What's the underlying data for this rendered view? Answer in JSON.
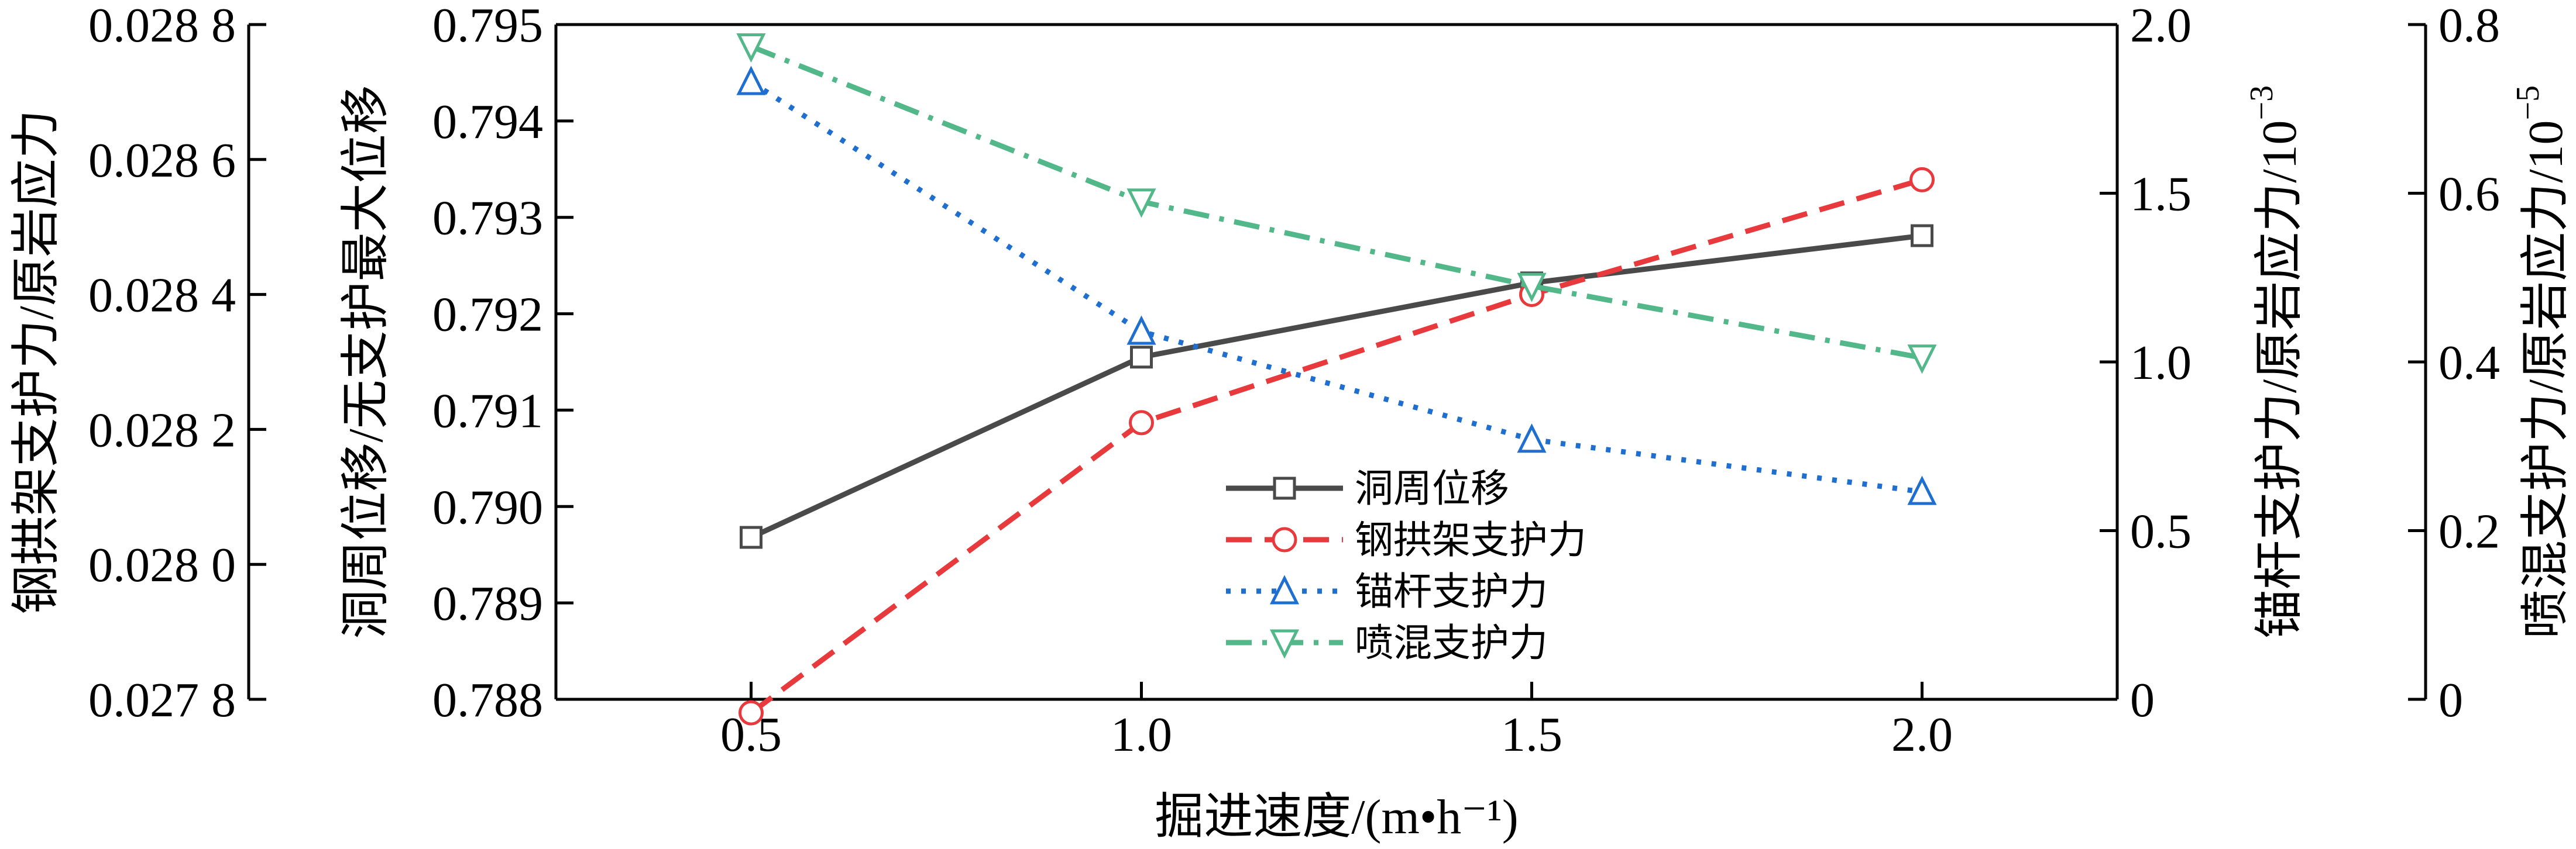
{
  "chart_data": {
    "type": "line",
    "xlabel": "掘进速度/(m•h⁻¹)",
    "x": [
      0.5,
      1.0,
      1.5,
      2.0
    ],
    "xlim": [
      0.25,
      2.25
    ],
    "xticks": [
      0.5,
      1.0,
      1.5,
      2.0
    ],
    "xtick_labels": [
      "0.5",
      "1.0",
      "1.5",
      "2.0"
    ],
    "axes": [
      {
        "id": "left_outer",
        "label": "钢拱架支护力/原岩应力",
        "lim": [
          0.0278,
          0.0288
        ],
        "ticks": [
          0.0278,
          0.028,
          0.0282,
          0.0284,
          0.0286,
          0.0288
        ],
        "tick_labels": [
          "0.027 8",
          "0.028 0",
          "0.028 2",
          "0.028 4",
          "0.028 6",
          "0.028 8"
        ]
      },
      {
        "id": "left_inner",
        "label": "洞周位移/无支护最大位移",
        "lim": [
          0.788,
          0.795
        ],
        "ticks": [
          0.788,
          0.789,
          0.79,
          0.791,
          0.792,
          0.793,
          0.794,
          0.795
        ],
        "tick_labels": [
          "0.788",
          "0.789",
          "0.790",
          "0.791",
          "0.792",
          "0.793",
          "0.794",
          "0.795"
        ]
      },
      {
        "id": "right_inner",
        "label": "锚杆支护力/原岩应力/10",
        "label_exponent": "−3",
        "lim": [
          0,
          2.0
        ],
        "ticks": [
          0,
          0.5,
          1.0,
          1.5,
          2.0
        ],
        "tick_labels": [
          "0",
          "0.5",
          "1.0",
          "1.5",
          "2.0"
        ]
      },
      {
        "id": "right_outer",
        "label": "喷混支护力/原岩应力/10",
        "label_exponent": "−5",
        "lim": [
          0,
          0.8
        ],
        "ticks": [
          0,
          0.2,
          0.4,
          0.6,
          0.8
        ],
        "tick_labels": [
          "0",
          "0.2",
          "0.4",
          "0.6",
          "0.8"
        ]
      }
    ],
    "series": [
      {
        "name": "洞周位移",
        "axis": "left_inner",
        "values": [
          0.78968,
          0.79155,
          0.79232,
          0.79281
        ],
        "color": "#4a4a4a",
        "dash": "solid",
        "marker": "square"
      },
      {
        "name": "钢拱架支护力",
        "axis": "left_outer",
        "values": [
          0.02778,
          0.02821,
          0.0284,
          0.02857
        ],
        "color": "#e8393c",
        "dash": "dashed",
        "marker": "circle"
      },
      {
        "name": "锚杆支护力",
        "axis": "right_inner",
        "values": [
          1.83,
          1.09,
          0.77,
          0.615
        ],
        "color": "#1f6fd1",
        "dash": "dotted",
        "marker": "triangle-up"
      },
      {
        "name": "喷混支护力",
        "axis": "right_outer",
        "values": [
          0.774,
          0.59,
          0.49,
          0.405
        ],
        "color": "#52b789",
        "dash": "dashdot",
        "marker": "triangle-down"
      }
    ],
    "legend_position": "center-bottom",
    "grid": false
  }
}
